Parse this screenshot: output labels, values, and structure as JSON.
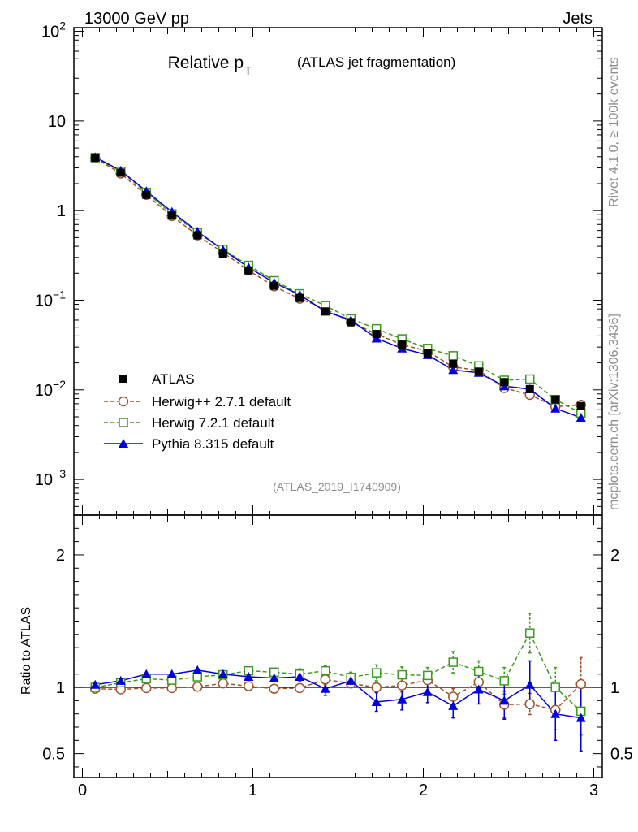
{
  "header": {
    "left": "13000 GeV pp",
    "right": "Jets",
    "title_main": "Relative p",
    "title_sub": "T",
    "title_paren": "(ATLAS jet fragmentation)",
    "side_top": "Rivet 4.1.0, ≥ 100k events",
    "side_bottom": "mcplots.cern.ch [arXiv:1306.3436]",
    "analysis": "(ATLAS_2019_I1740909)",
    "ratio_ylabel": "Ratio to ATLAS"
  },
  "colors": {
    "atlas": "#000000",
    "herwigpp": "#a0522d",
    "herwig7": "#3c9a1e",
    "pythia": "#0000e0",
    "gray": "#8c8c8c"
  },
  "chart_data": [
    {
      "type": "line",
      "panel": "main",
      "yscale": "log",
      "xlim": [
        -0.05,
        3.05
      ],
      "ylim": [
        0.0004,
        110
      ],
      "x_ticks": [
        0,
        1,
        2,
        3
      ],
      "y_ticks": [
        {
          "value": 100,
          "base": "10",
          "exp": "2"
        },
        {
          "value": 10,
          "base": "10",
          "exp": ""
        },
        {
          "value": 1,
          "base": "1",
          "exp": ""
        },
        {
          "value": 0.1,
          "base": "10",
          "exp": "−1"
        },
        {
          "value": 0.01,
          "base": "10",
          "exp": "−2"
        },
        {
          "value": 0.001,
          "base": "10",
          "exp": "−3"
        }
      ],
      "x": [
        0.075,
        0.225,
        0.375,
        0.525,
        0.675,
        0.825,
        0.975,
        1.125,
        1.275,
        1.425,
        1.575,
        1.725,
        1.875,
        2.025,
        2.175,
        2.325,
        2.475,
        2.625,
        2.775,
        2.925
      ],
      "series": [
        {
          "key": "atlas",
          "name": "ATLAS",
          "marker": "square-filled",
          "values": [
            3.9,
            2.65,
            1.5,
            0.88,
            0.53,
            0.33,
            0.215,
            0.145,
            0.106,
            0.075,
            0.057,
            0.042,
            0.032,
            0.0255,
            0.0195,
            0.016,
            0.0122,
            0.0102,
            0.0078,
            0.0066
          ]
        },
        {
          "key": "herwigpp",
          "name": "Herwig++ 2.7.1 default",
          "marker": "circle-open",
          "values": [
            3.85,
            2.6,
            1.5,
            0.87,
            0.53,
            0.34,
            0.215,
            0.143,
            0.104,
            0.08,
            0.057,
            0.042,
            0.032,
            0.027,
            0.018,
            0.0165,
            0.0105,
            0.0088,
            0.0065,
            0.0068
          ]
        },
        {
          "key": "herwig7",
          "name": "Herwig 7.2.1 default",
          "marker": "square-open",
          "values": [
            3.9,
            2.75,
            1.6,
            0.92,
            0.57,
            0.37,
            0.245,
            0.165,
            0.118,
            0.087,
            0.062,
            0.048,
            0.037,
            0.029,
            0.024,
            0.0185,
            0.0128,
            0.0132,
            0.0078,
            0.0055
          ]
        },
        {
          "key": "pythia",
          "name": "Pythia 8.315 default",
          "marker": "triangle-filled",
          "values": [
            3.95,
            2.8,
            1.65,
            0.97,
            0.585,
            0.365,
            0.232,
            0.157,
            0.115,
            0.075,
            0.06,
            0.0375,
            0.029,
            0.0245,
            0.0167,
            0.0155,
            0.011,
            0.0102,
            0.0062,
            0.0049
          ]
        }
      ]
    },
    {
      "type": "line",
      "panel": "ratio",
      "ylabel": "Ratio to ATLAS",
      "xlim": [
        -0.05,
        3.05
      ],
      "ylim": [
        0.32,
        2.3
      ],
      "x_ticks": [
        0,
        1,
        2,
        3
      ],
      "x_tick_labels": [
        "0",
        "1",
        "2",
        "3"
      ],
      "y_ticks": [
        2,
        1,
        0.5
      ],
      "y_tick_labels": [
        "2",
        "1",
        "0.5"
      ],
      "reference_line": 1,
      "x": [
        0.075,
        0.225,
        0.375,
        0.525,
        0.675,
        0.825,
        0.975,
        1.125,
        1.275,
        1.425,
        1.575,
        1.725,
        1.875,
        2.025,
        2.175,
        2.325,
        2.475,
        2.625,
        2.775,
        2.925
      ],
      "series": [
        {
          "key": "herwigpp",
          "name": "Herwig++ 2.7.1 default",
          "values": [
            0.99,
            0.985,
            0.995,
            0.995,
            1.005,
            1.03,
            1.01,
            0.99,
            0.995,
            1.06,
            1.03,
            1.0,
            1.015,
            1.055,
            0.93,
            1.04,
            0.87,
            0.875,
            0.83,
            1.025
          ],
          "errors": [
            0,
            0,
            0,
            0,
            0,
            0,
            0,
            0,
            0.03,
            0.04,
            0,
            0.04,
            0.05,
            0.05,
            0.06,
            0.07,
            0.1,
            0.08,
            0.15,
            0.2
          ]
        },
        {
          "key": "herwig7",
          "name": "Herwig 7.2.1 default",
          "values": [
            1.0,
            1.035,
            1.065,
            1.055,
            1.08,
            1.095,
            1.125,
            1.115,
            1.1,
            1.125,
            1.075,
            1.11,
            1.095,
            1.09,
            1.19,
            1.12,
            1.05,
            1.41,
            1.0,
            0.82
          ],
          "errors": [
            0,
            0,
            0,
            0,
            0,
            0.02,
            0.02,
            0.03,
            0.04,
            0.04,
            0.04,
            0.06,
            0.06,
            0.06,
            0.08,
            0.08,
            0.1,
            0.15,
            0.15,
            0.18
          ]
        },
        {
          "key": "pythia",
          "name": "Pythia 8.315 default",
          "values": [
            1.02,
            1.05,
            1.1,
            1.1,
            1.13,
            1.1,
            1.08,
            1.07,
            1.08,
            0.99,
            1.05,
            0.89,
            0.91,
            0.965,
            0.86,
            0.985,
            0.9,
            1.02,
            0.8,
            0.77
          ],
          "errors": [
            0,
            0,
            0,
            0,
            0,
            0,
            0,
            0,
            0.03,
            0.05,
            0.05,
            0.07,
            0.08,
            0.08,
            0.09,
            0.11,
            0.14,
            0.18,
            0.2,
            0.25
          ]
        }
      ]
    }
  ]
}
